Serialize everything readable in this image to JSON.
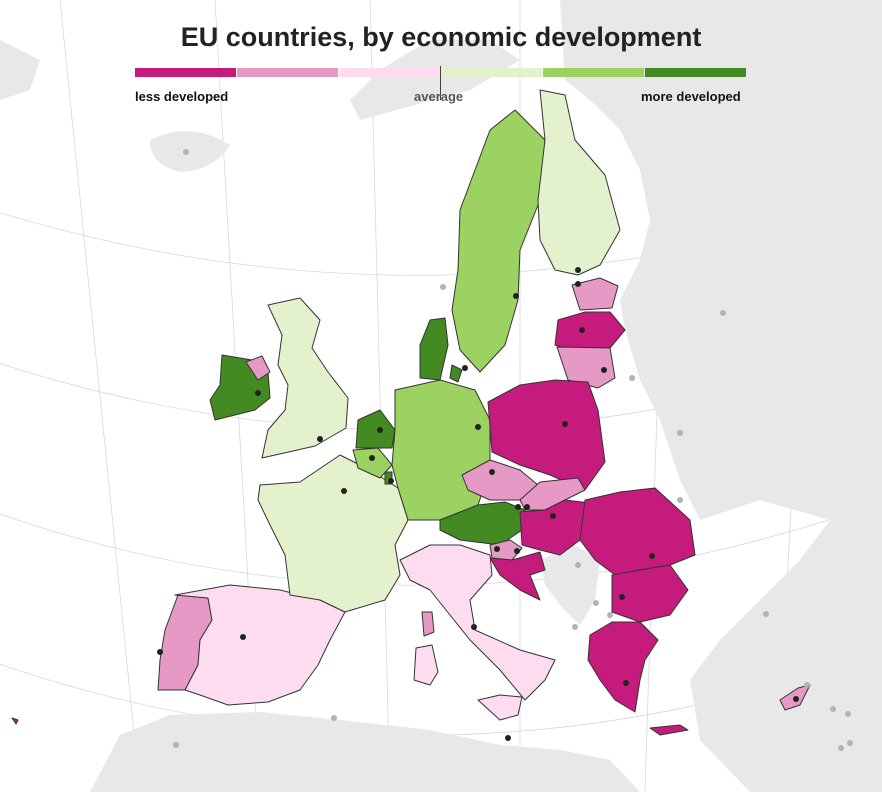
{
  "title": "EU countries, by economic development",
  "legend": {
    "labels": {
      "low": "less developed",
      "mid": "average",
      "high": "more developed"
    },
    "colors": [
      "#c51b7d",
      "#e799c5",
      "#fcdcee",
      "#e3f2cd",
      "#9bd262",
      "#448a22"
    ]
  },
  "map_colors": {
    "sea": "#ffffff",
    "land": "#e8e8e8",
    "grid": "#d8d8d8",
    "border": "#333333",
    "capital": "#222222",
    "noneu_capital": "#b3b3b3"
  },
  "countries": [
    {
      "name": "Portugal",
      "class": 1
    },
    {
      "name": "Spain",
      "class": 2
    },
    {
      "name": "France",
      "class": 3
    },
    {
      "name": "Ireland",
      "class": 5
    },
    {
      "name": "United Kingdom",
      "class": 3
    },
    {
      "name": "Northern Ireland",
      "class": 1
    },
    {
      "name": "Belgium",
      "class": 4
    },
    {
      "name": "Netherlands",
      "class": 5
    },
    {
      "name": "Luxembourg",
      "class": 5
    },
    {
      "name": "Germany",
      "class": 4
    },
    {
      "name": "Denmark",
      "class": 5
    },
    {
      "name": "Sweden",
      "class": 4
    },
    {
      "name": "Finland",
      "class": 3
    },
    {
      "name": "Estonia",
      "class": 1
    },
    {
      "name": "Latvia",
      "class": 0
    },
    {
      "name": "Lithuania",
      "class": 1
    },
    {
      "name": "Poland",
      "class": 0
    },
    {
      "name": "Czech Republic",
      "class": 1
    },
    {
      "name": "Slovakia",
      "class": 1
    },
    {
      "name": "Austria",
      "class": 5
    },
    {
      "name": "Hungary",
      "class": 0
    },
    {
      "name": "Slovenia",
      "class": 1
    },
    {
      "name": "Croatia",
      "class": 0
    },
    {
      "name": "Romania",
      "class": 0
    },
    {
      "name": "Bulgaria",
      "class": 0
    },
    {
      "name": "Greece",
      "class": 0
    },
    {
      "name": "Italy",
      "class": 2
    },
    {
      "name": "Cyprus",
      "class": 1
    },
    {
      "name": "Malta",
      "class": 0
    }
  ]
}
